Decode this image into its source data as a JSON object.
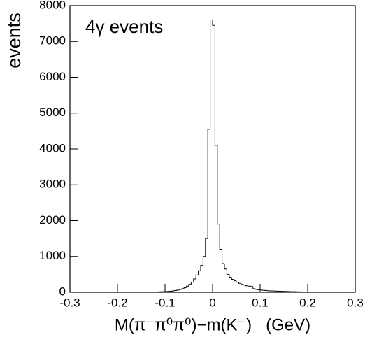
{
  "chart_data": {
    "type": "histogram",
    "annotation": "4γ events",
    "ylabel": "events",
    "xlabel": "M(π⁻π⁰π⁰)−m(K⁻)   (GeV)",
    "bins": [
      -0.3,
      -0.295,
      -0.29,
      -0.285,
      -0.28,
      -0.275,
      -0.27,
      -0.265,
      -0.26,
      -0.255,
      -0.25,
      -0.245,
      -0.24,
      -0.235,
      -0.23,
      -0.225,
      -0.22,
      -0.215,
      -0.21,
      -0.205,
      -0.2,
      -0.195,
      -0.19,
      -0.185,
      -0.18,
      -0.175,
      -0.17,
      -0.165,
      -0.16,
      -0.155,
      -0.15,
      -0.145,
      -0.14,
      -0.135,
      -0.13,
      -0.125,
      -0.12,
      -0.115,
      -0.11,
      -0.105,
      -0.1,
      -0.095,
      -0.09,
      -0.085,
      -0.08,
      -0.075,
      -0.07,
      -0.065,
      -0.06,
      -0.055,
      -0.05,
      -0.045,
      -0.04,
      -0.035,
      -0.03,
      -0.025,
      -0.02,
      -0.015,
      -0.01,
      -0.005,
      0,
      0.005,
      0.01,
      0.015,
      0.02,
      0.025,
      0.03,
      0.035,
      0.04,
      0.045,
      0.05,
      0.055,
      0.06,
      0.065,
      0.07,
      0.075,
      0.08,
      0.085,
      0.09,
      0.095,
      0.1,
      0.105,
      0.11,
      0.115,
      0.12,
      0.125,
      0.13,
      0.135,
      0.14,
      0.145,
      0.15,
      0.155,
      0.16,
      0.165,
      0.17,
      0.175,
      0.18,
      0.185,
      0.19,
      0.195,
      0.2,
      0.205,
      0.21,
      0.215,
      0.22,
      0.225,
      0.23,
      0.235,
      0.24,
      0.245,
      0.25,
      0.255,
      0.26,
      0.265,
      0.27,
      0.275,
      0.28,
      0.285,
      0.29,
      0.295,
      0.3
    ],
    "values": [
      0,
      0,
      0,
      0,
      0,
      0,
      0,
      0,
      0,
      0,
      0,
      0,
      0,
      0,
      0,
      0,
      0,
      0,
      0,
      0,
      0,
      0,
      0,
      0,
      0,
      0,
      0,
      0,
      0,
      0,
      3,
      4,
      5,
      6,
      7,
      8,
      10,
      12,
      14,
      16,
      20,
      25,
      30,
      40,
      50,
      60,
      80,
      100,
      130,
      170,
      220,
      280,
      370,
      480,
      600,
      750,
      1000,
      1500,
      4550,
      7600,
      7450,
      4100,
      1900,
      1200,
      800,
      650,
      500,
      420,
      360,
      320,
      280,
      250,
      220,
      200,
      180,
      170,
      160,
      100,
      80,
      70,
      60,
      55,
      50,
      45,
      40,
      38,
      35,
      32,
      30,
      28,
      25,
      22,
      20,
      18,
      16,
      14,
      12,
      10,
      9,
      8,
      7,
      6,
      5,
      4,
      3,
      2,
      2,
      1,
      1,
      0,
      0,
      0,
      0,
      0,
      0,
      0,
      0,
      0,
      0,
      0
    ],
    "color": "#000000",
    "xlim": [
      -0.3,
      0.3
    ],
    "xticks": [
      -0.3,
      -0.2,
      -0.1,
      0,
      0.1,
      0.2,
      0.3
    ],
    "ylim": [
      0,
      8000
    ],
    "yticks": [
      0,
      1000,
      2000,
      3000,
      4000,
      5000,
      6000,
      7000,
      8000
    ]
  }
}
